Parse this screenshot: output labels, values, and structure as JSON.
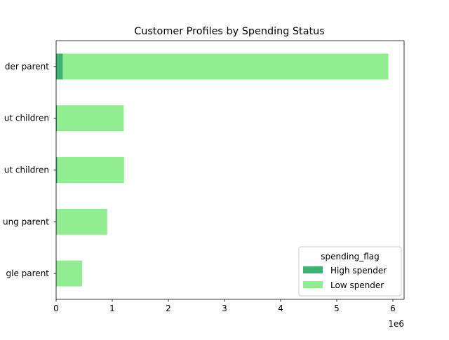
{
  "chart_data": {
    "type": "bar",
    "orientation": "horizontal",
    "stacked": true,
    "title": "Customer Profiles by Spending Status",
    "xlabel": "",
    "ylabel": "",
    "x_offset_label": "1e6",
    "xlim": [
      0,
      6.2
    ],
    "x_ticks": [
      0,
      1,
      2,
      3,
      4,
      5,
      6
    ],
    "x_tick_labels": [
      "0",
      "1",
      "2",
      "3",
      "4",
      "5",
      "6"
    ],
    "categories": [
      "der parent",
      "ut children",
      "ut children",
      "ung parent",
      "gle parent"
    ],
    "series": [
      {
        "name": "High spender",
        "color": "#3cb371",
        "values": [
          0.12,
          0.015,
          0.02,
          0.01,
          0.005
        ]
      },
      {
        "name": "Low spender",
        "color": "#90ee90",
        "values": [
          5.8,
          1.19,
          1.19,
          0.9,
          0.46
        ]
      }
    ],
    "legend": {
      "title": "spending_flag",
      "position": "lower-right"
    },
    "grid": false
  }
}
